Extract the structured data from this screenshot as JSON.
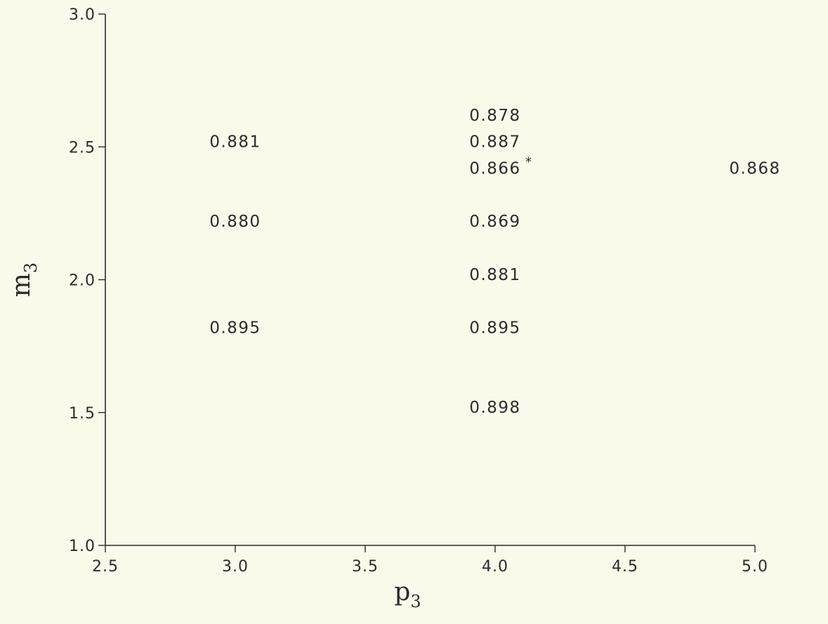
{
  "chart_data": {
    "type": "scatter",
    "title": "",
    "xlabel": {
      "base": "p",
      "sub": "3"
    },
    "ylabel": {
      "base": "m",
      "sub": "3"
    },
    "xlim": [
      2.5,
      5.0
    ],
    "ylim": [
      1.0,
      3.0
    ],
    "x_ticks": [
      "2.5",
      "3.0",
      "3.5",
      "4.0",
      "4.5",
      "5.0"
    ],
    "y_ticks": [
      "1.0",
      "1.5",
      "2.0",
      "2.5",
      "3.0"
    ],
    "grid": false,
    "points": [
      {
        "x": 3.0,
        "y": 2.52,
        "label": "0.881",
        "marker": ""
      },
      {
        "x": 3.0,
        "y": 2.22,
        "label": "0.880",
        "marker": ""
      },
      {
        "x": 3.0,
        "y": 1.82,
        "label": "0.895",
        "marker": ""
      },
      {
        "x": 4.0,
        "y": 2.62,
        "label": "0.878",
        "marker": ""
      },
      {
        "x": 4.0,
        "y": 2.52,
        "label": "0.887",
        "marker": ""
      },
      {
        "x": 4.0,
        "y": 2.42,
        "label": "0.866",
        "marker": "*"
      },
      {
        "x": 4.0,
        "y": 2.22,
        "label": "0.869",
        "marker": ""
      },
      {
        "x": 4.0,
        "y": 2.02,
        "label": "0.881",
        "marker": ""
      },
      {
        "x": 4.0,
        "y": 1.82,
        "label": "0.895",
        "marker": ""
      },
      {
        "x": 4.0,
        "y": 1.52,
        "label": "0.898",
        "marker": ""
      },
      {
        "x": 5.0,
        "y": 2.42,
        "label": "0.868",
        "marker": ""
      }
    ]
  }
}
